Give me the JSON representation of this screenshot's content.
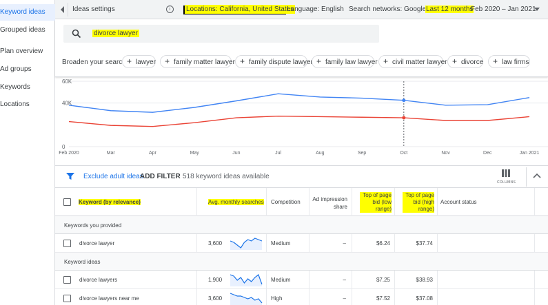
{
  "sidebar": {
    "items": [
      {
        "label": "Keyword ideas",
        "active": true
      },
      {
        "label": "Grouped ideas"
      },
      {
        "label": "Plan overview"
      },
      {
        "label": "Ad groups"
      },
      {
        "label": "Keywords"
      },
      {
        "label": "Locations"
      }
    ]
  },
  "topbar": {
    "title": "Ideas settings",
    "location": "Locations: California, United States",
    "language": "Language: English",
    "networks": "Search networks: Google",
    "date_preset": "Last 12 months",
    "date_range": "Feb 2020 – Jan 2021",
    "prev_icon": "chevron-left-icon",
    "next_icon": "chevron-right-icon"
  },
  "search": {
    "value": "divorce lawyer",
    "broaden_label": "Broaden your search:",
    "chips": [
      "lawyer",
      "family matter lawyer",
      "family dispute lawyer",
      "family law lawyer",
      "civil matter lawyer",
      "divorce",
      "law firms"
    ]
  },
  "chart_data": {
    "type": "line",
    "x": [
      "Feb 2020",
      "Mar",
      "Apr",
      "May",
      "Jun",
      "Jul",
      "Aug",
      "Sep",
      "Oct",
      "Nov",
      "Dec",
      "Jan 2021"
    ],
    "yticks": [
      "60K",
      "40K",
      "0"
    ],
    "ylim": [
      0,
      60000
    ],
    "series": [
      {
        "values": [
          38000,
          33000,
          31500,
          36000,
          42000,
          48500,
          45500,
          44500,
          42500,
          38000,
          38500,
          45000
        ],
        "color": "#4285f4"
      },
      {
        "values": [
          23000,
          19500,
          18500,
          22000,
          26500,
          28000,
          27500,
          27000,
          26500,
          24000,
          24000,
          27500
        ],
        "color": "#ea4335"
      }
    ],
    "marker_index": 8
  },
  "filterbar": {
    "exclude_label": "Exclude adult ideas",
    "add_filter": "ADD FILTER",
    "count": "518 keyword ideas available",
    "columns_label": "COLUMNS"
  },
  "table": {
    "headers": {
      "keyword": "Keyword (by relevance)",
      "avg": "Avg. monthly searches",
      "competition": "Competition",
      "share": "Ad impression share",
      "low_bid": "Top of page bid (low range)",
      "high_bid": "Top of page bid (high range)",
      "status": "Account status"
    },
    "group_provided": "Keywords you provided",
    "group_ideas": "Keyword ideas",
    "rows": [
      {
        "keyword": "divorce lawyer",
        "avg": "3,600",
        "competition": "Medium",
        "share": "–",
        "low": "$6.24",
        "high": "$37.74",
        "spark": [
          6,
          5,
          3,
          1,
          5,
          7,
          6,
          8,
          7,
          6
        ]
      },
      {
        "keyword": "divorce lawyers",
        "avg": "1,900",
        "competition": "Medium",
        "share": "–",
        "low": "$7.25",
        "high": "$38.93",
        "spark": [
          8,
          7,
          4,
          6,
          2,
          5,
          3,
          6,
          8,
          1
        ]
      },
      {
        "keyword": "divorce lawyers near me",
        "avg": "3,600",
        "competition": "High",
        "share": "–",
        "low": "$7.52",
        "high": "$37.08",
        "spark": [
          8,
          7,
          6,
          6,
          5,
          4,
          5,
          3,
          4,
          1
        ]
      }
    ]
  }
}
